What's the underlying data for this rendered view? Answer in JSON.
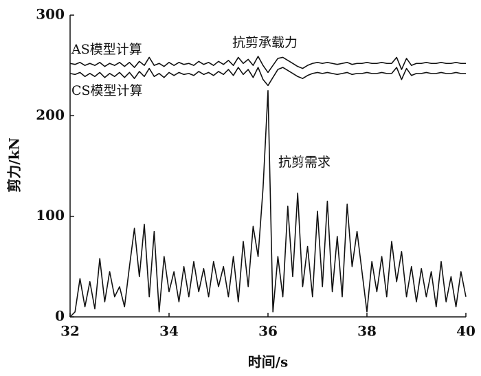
{
  "chart_data": {
    "type": "line",
    "x_label": "时间/s",
    "y_label": "剪力/kN",
    "annotations": [
      "AS模型计算",
      "CS模型计算",
      "抗剪承载力",
      "抗剪需求"
    ],
    "xlim": [
      32,
      40
    ],
    "xticks": [
      32,
      34,
      36,
      38,
      40
    ],
    "ylim": [
      0,
      300
    ],
    "yticks": [
      0,
      100,
      200,
      300
    ],
    "x": [
      32.0,
      32.1,
      32.2,
      32.3,
      32.4,
      32.5,
      32.6,
      32.7,
      32.8,
      32.9,
      33.0,
      33.1,
      33.2,
      33.3,
      33.4,
      33.5,
      33.6,
      33.7,
      33.8,
      33.9,
      34.0,
      34.1,
      34.2,
      34.3,
      34.4,
      34.5,
      34.6,
      34.7,
      34.8,
      34.9,
      35.0,
      35.1,
      35.2,
      35.3,
      35.4,
      35.5,
      35.6,
      35.7,
      35.8,
      35.9,
      36.0,
      36.1,
      36.2,
      36.3,
      36.4,
      36.5,
      36.6,
      36.7,
      36.8,
      36.9,
      37.0,
      37.1,
      37.2,
      37.3,
      37.4,
      37.5,
      37.6,
      37.7,
      37.8,
      37.9,
      38.0,
      38.1,
      38.2,
      38.3,
      38.4,
      38.5,
      38.6,
      38.7,
      38.8,
      38.9,
      39.0,
      39.1,
      39.2,
      39.3,
      39.4,
      39.5,
      39.6,
      39.7,
      39.8,
      39.9,
      40.0
    ],
    "series": [
      {
        "color": "#111111",
        "values": [
          252,
          251,
          253,
          250,
          252,
          250,
          253,
          249,
          252,
          250,
          253,
          249,
          253,
          248,
          254,
          250,
          258,
          250,
          252,
          249,
          253,
          250,
          253,
          251,
          252,
          250,
          254,
          251,
          253,
          250,
          254,
          251,
          255,
          250,
          258,
          252,
          256,
          250,
          259,
          250,
          243,
          250,
          257,
          258,
          255,
          252,
          249,
          247,
          250,
          252,
          253,
          252,
          253,
          252,
          251,
          252,
          253,
          251,
          252,
          252,
          253,
          252,
          252,
          253,
          252,
          252,
          258,
          246,
          257,
          250,
          252,
          252,
          253,
          252,
          252,
          253,
          252,
          252,
          253,
          252,
          252
        ]
      },
      {
        "color": "#111111",
        "values": [
          242,
          241,
          243,
          239,
          242,
          239,
          243,
          238,
          242,
          239,
          243,
          238,
          243,
          237,
          244,
          239,
          247,
          239,
          242,
          238,
          243,
          240,
          243,
          241,
          242,
          240,
          244,
          241,
          243,
          240,
          244,
          241,
          246,
          240,
          248,
          241,
          246,
          238,
          248,
          236,
          230,
          238,
          246,
          248,
          245,
          242,
          239,
          237,
          240,
          242,
          243,
          242,
          243,
          242,
          241,
          242,
          243,
          241,
          242,
          242,
          243,
          242,
          242,
          243,
          242,
          242,
          248,
          236,
          247,
          240,
          242,
          242,
          243,
          242,
          242,
          243,
          242,
          242,
          243,
          242,
          242
        ]
      },
      {
        "color": "#111111",
        "values": [
          0,
          5,
          38,
          10,
          35,
          8,
          58,
          15,
          45,
          20,
          30,
          10,
          50,
          88,
          40,
          92,
          20,
          85,
          5,
          60,
          25,
          45,
          15,
          50,
          20,
          55,
          25,
          48,
          20,
          55,
          30,
          50,
          20,
          60,
          15,
          75,
          30,
          90,
          60,
          128,
          225,
          5,
          60,
          20,
          110,
          40,
          123,
          30,
          70,
          20,
          105,
          30,
          115,
          25,
          80,
          20,
          112,
          50,
          85,
          45,
          5,
          55,
          25,
          60,
          20,
          75,
          35,
          65,
          20,
          50,
          15,
          48,
          20,
          45,
          10,
          55,
          15,
          40,
          10,
          45,
          20
        ]
      }
    ]
  }
}
